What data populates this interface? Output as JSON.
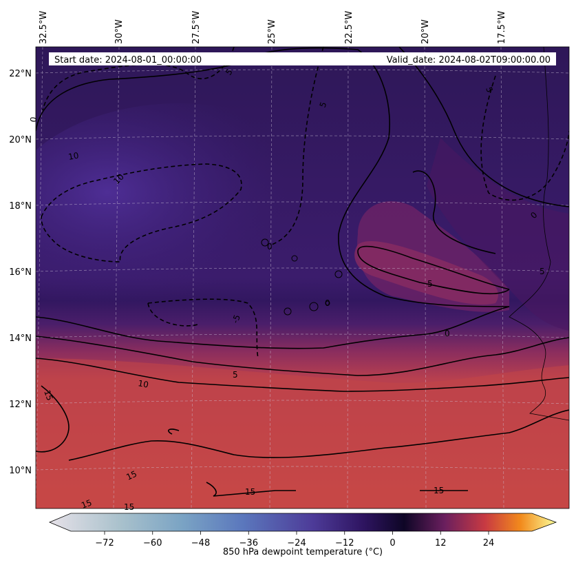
{
  "header": {
    "start_date": "Start date: 2024-08-01_00:00:00",
    "valid_date": "Valid_date: 2024-08-02T09:00:00.00"
  },
  "lon_labels": [
    "32.5°W",
    "30°W",
    "27.5°W",
    "25°W",
    "22.5°W",
    "20°W",
    "17.5°W"
  ],
  "lat_labels": [
    "22°N",
    "20°N",
    "18°N",
    "16°N",
    "14°N",
    "12°N",
    "10°N"
  ],
  "contour_labels": [
    "5",
    "5",
    "10",
    "10",
    "0",
    "5",
    "0",
    "5",
    "0",
    "5",
    "0",
    "5",
    "10",
    "15",
    "15",
    "15",
    "15",
    "15",
    "15",
    "0",
    "-5"
  ],
  "colorbar": {
    "label": "850 hPa dewpoint temperature ($^\\circ$C)",
    "label_display": "850 hPa dewpoint temperature (°C)",
    "ticks": [
      "−72",
      "−60",
      "−48",
      "−36",
      "−24",
      "−12",
      "0",
      "12",
      "24"
    ],
    "tick_values": [
      -72,
      -60,
      -48,
      -36,
      -24,
      -12,
      0,
      12,
      24
    ],
    "range": [
      -84,
      32
    ],
    "colors": {
      "cold_end": "#e6e1e8",
      "blue": "#5b85c0",
      "purple": "#3a1d78",
      "zero": "#140a30",
      "warm_mid": "#b5364d",
      "orange": "#f07a1a",
      "hot_end": "#fbfd99"
    }
  },
  "map_colors": {
    "dry_core": "#4a2a8c",
    "dry_dark": "#2e1758",
    "moist": "#7a2464",
    "humid": "#c64948",
    "contour": "#000000",
    "coast": "#000000"
  }
}
